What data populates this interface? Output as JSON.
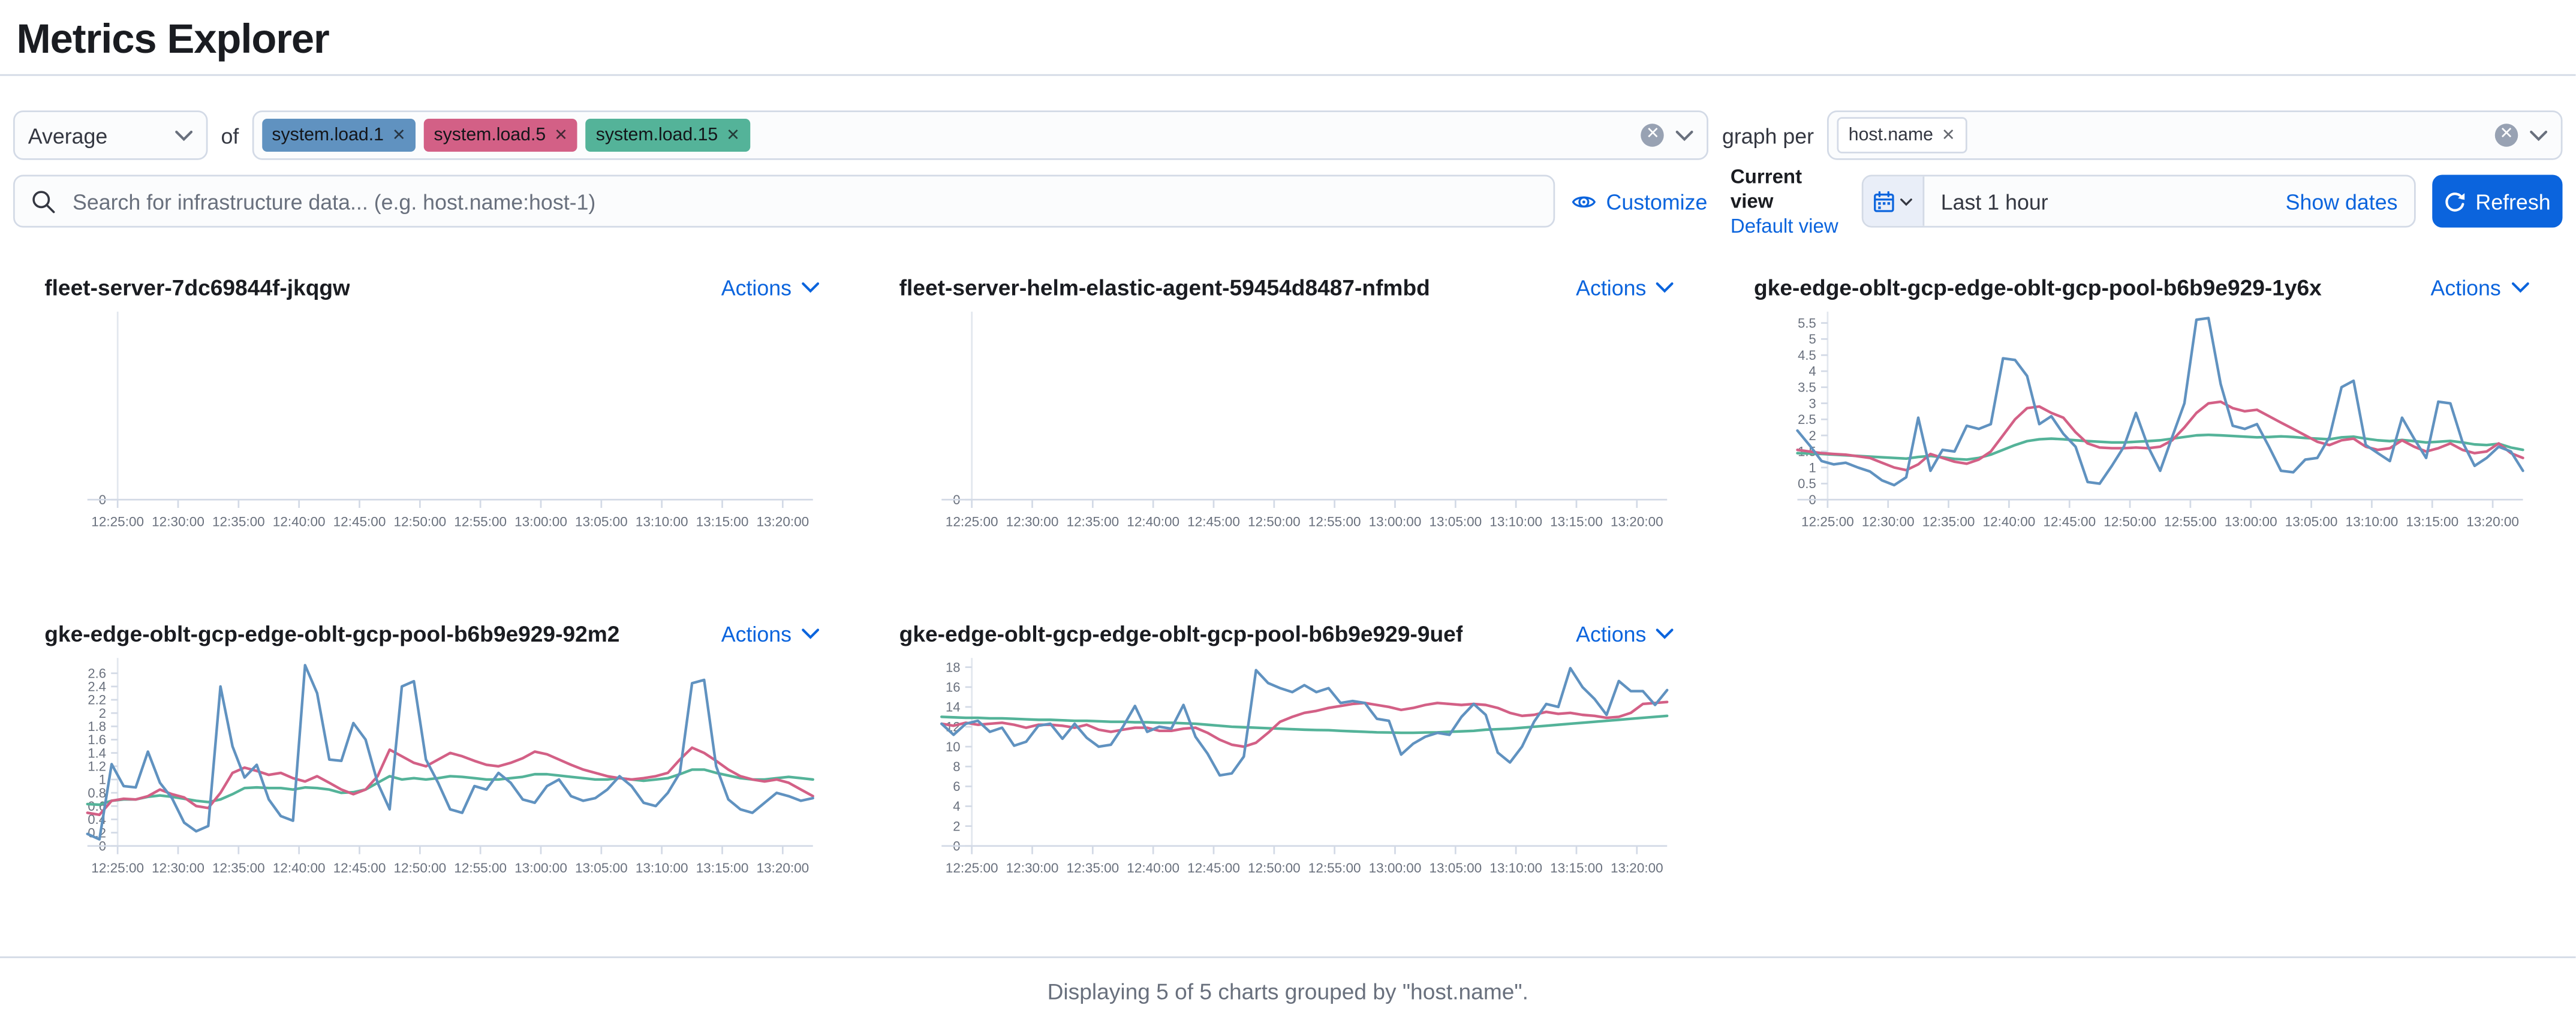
{
  "page": {
    "title": "Metrics Explorer"
  },
  "colors": {
    "accent": "#0b64dd",
    "series_blue": "#6092C0",
    "series_pink": "#D36086",
    "series_green": "#54B399",
    "axis_line": "#d3dae6",
    "tick_text": "#69707d"
  },
  "toolbar": {
    "aggregation_select": {
      "value": "Average"
    },
    "of_label": "of",
    "metric_badges": [
      {
        "label": "system.load.1",
        "color": "#6092C0"
      },
      {
        "label": "system.load.5",
        "color": "#D36086"
      },
      {
        "label": "system.load.15",
        "color": "#54B399"
      }
    ],
    "graph_per_label": "graph per",
    "group_by_badges": [
      {
        "label": "host.name"
      }
    ]
  },
  "search": {
    "placeholder": "Search for infrastructure data... (e.g. host.name:host-1)"
  },
  "view_controls": {
    "customize_label": "Customize",
    "current_view_label": "Current view",
    "default_view_label": "Default view"
  },
  "datepicker": {
    "range_label": "Last 1 hour",
    "show_dates_label": "Show dates",
    "refresh_label": "Refresh"
  },
  "chart_x_ticks": [
    "12:25:00",
    "12:30:00",
    "12:35:00",
    "12:40:00",
    "12:45:00",
    "12:50:00",
    "12:55:00",
    "13:00:00",
    "13:05:00",
    "13:10:00",
    "13:15:00",
    "13:20:00"
  ],
  "charts": [
    {
      "title": "fleet-server-7dc69844f-jkqgw",
      "actions_label": "Actions",
      "type": "line",
      "y_ticks": [
        0
      ],
      "y_max": 1,
      "series": []
    },
    {
      "title": "fleet-server-helm-elastic-agent-59454d8487-nfmbd",
      "actions_label": "Actions",
      "type": "line",
      "y_ticks": [
        0
      ],
      "y_max": 1,
      "series": []
    },
    {
      "title": "gke-edge-oblt-gcp-edge-oblt-gcp-pool-b6b9e929-1y6x",
      "actions_label": "Actions",
      "type": "line",
      "y_ticks": [
        5.5,
        5,
        4.5,
        4,
        3.5,
        3,
        2.5,
        2,
        1.5,
        1,
        0.5,
        0
      ],
      "y_max": 5.75,
      "series": [
        {
          "name": "system.load.15",
          "color": "#54B399",
          "values": [
            1.45,
            1.44,
            1.42,
            1.4,
            1.38,
            1.36,
            1.34,
            1.32,
            1.3,
            1.28,
            1.33,
            1.36,
            1.32,
            1.27,
            1.25,
            1.3,
            1.4,
            1.55,
            1.7,
            1.82,
            1.88,
            1.9,
            1.88,
            1.85,
            1.82,
            1.8,
            1.78,
            1.78,
            1.8,
            1.82,
            1.85,
            1.9,
            1.95,
            2.0,
            2.02,
            2.0,
            1.98,
            1.96,
            1.94,
            1.95,
            1.97,
            1.95,
            1.92,
            1.9,
            1.88,
            1.94,
            1.96,
            1.9,
            1.85,
            1.82,
            1.86,
            1.82,
            1.78,
            1.8,
            1.83,
            1.78,
            1.72,
            1.7,
            1.74,
            1.62,
            1.55
          ]
        },
        {
          "name": "system.load.5",
          "color": "#D36086",
          "values": [
            1.55,
            1.5,
            1.45,
            1.42,
            1.4,
            1.35,
            1.3,
            1.15,
            1.0,
            0.92,
            1.1,
            1.42,
            1.3,
            1.18,
            1.12,
            1.25,
            1.5,
            2.0,
            2.5,
            2.85,
            2.9,
            2.7,
            2.55,
            2.1,
            1.75,
            1.62,
            1.6,
            1.6,
            1.62,
            1.6,
            1.65,
            1.85,
            2.25,
            2.7,
            3.0,
            3.05,
            2.85,
            2.75,
            2.8,
            2.6,
            2.4,
            2.2,
            2.0,
            1.8,
            1.7,
            1.85,
            1.9,
            1.65,
            1.55,
            1.6,
            1.85,
            1.65,
            1.5,
            1.6,
            1.75,
            1.55,
            1.45,
            1.5,
            1.75,
            1.45,
            1.3
          ]
        },
        {
          "name": "system.load.1",
          "color": "#6092C0",
          "values": [
            2.15,
            1.7,
            1.2,
            1.1,
            1.15,
            1.0,
            0.88,
            0.6,
            0.45,
            0.7,
            2.55,
            0.9,
            1.55,
            1.5,
            2.3,
            2.2,
            2.35,
            4.4,
            4.35,
            3.85,
            2.35,
            2.6,
            2.05,
            1.65,
            0.55,
            0.5,
            1.05,
            1.65,
            2.7,
            1.65,
            0.9,
            1.95,
            3.0,
            5.6,
            5.65,
            3.6,
            2.3,
            2.2,
            2.35,
            1.65,
            0.9,
            0.85,
            1.25,
            1.3,
            1.95,
            3.5,
            3.7,
            1.7,
            1.45,
            1.2,
            2.55,
            1.9,
            1.3,
            3.05,
            3.0,
            1.8,
            1.05,
            1.3,
            1.65,
            1.5,
            0.9
          ]
        }
      ]
    },
    {
      "title": "gke-edge-oblt-gcp-edge-oblt-gcp-pool-b6b9e929-92m2",
      "actions_label": "Actions",
      "type": "line",
      "y_ticks": [
        2.6,
        2.4,
        2.2,
        2,
        1.8,
        1.6,
        1.4,
        1.2,
        1,
        0.8,
        0.6,
        0.4,
        0.2,
        0
      ],
      "y_max": 2.78,
      "series": [
        {
          "name": "system.load.15",
          "color": "#54B399",
          "values": [
            0.63,
            0.62,
            0.68,
            0.7,
            0.7,
            0.74,
            0.76,
            0.74,
            0.71,
            0.68,
            0.66,
            0.7,
            0.78,
            0.87,
            0.88,
            0.87,
            0.87,
            0.85,
            0.88,
            0.87,
            0.85,
            0.8,
            0.81,
            0.85,
            0.95,
            1.05,
            1.0,
            1.02,
            1.0,
            1.02,
            1.05,
            1.04,
            1.02,
            1.0,
            1.0,
            1.02,
            1.04,
            1.08,
            1.08,
            1.06,
            1.04,
            1.02,
            1.0,
            1.0,
            1.02,
            1.0,
            0.98,
            1.0,
            1.02,
            1.08,
            1.15,
            1.15,
            1.1,
            1.06,
            1.02,
            1.0,
            1.0,
            1.02,
            1.04,
            1.02,
            1.0
          ]
        },
        {
          "name": "system.load.5",
          "color": "#D36086",
          "values": [
            0.5,
            0.47,
            0.68,
            0.71,
            0.7,
            0.75,
            0.85,
            0.78,
            0.73,
            0.6,
            0.57,
            0.8,
            1.1,
            1.18,
            1.13,
            1.07,
            1.1,
            1.02,
            0.97,
            1.05,
            0.95,
            0.85,
            0.78,
            0.85,
            1.05,
            1.45,
            1.35,
            1.25,
            1.2,
            1.3,
            1.4,
            1.35,
            1.28,
            1.22,
            1.2,
            1.25,
            1.32,
            1.42,
            1.38,
            1.3,
            1.22,
            1.15,
            1.1,
            1.05,
            1.02,
            1.0,
            1.02,
            1.05,
            1.1,
            1.3,
            1.48,
            1.4,
            1.28,
            1.15,
            1.05,
            1.0,
            0.97,
            1.0,
            0.95,
            0.85,
            0.75
          ]
        },
        {
          "name": "system.load.1",
          "color": "#6092C0",
          "values": [
            0.18,
            0.1,
            1.23,
            0.9,
            0.88,
            1.42,
            0.95,
            0.72,
            0.35,
            0.22,
            0.3,
            2.4,
            1.5,
            1.03,
            1.22,
            0.7,
            0.45,
            0.38,
            2.72,
            2.3,
            1.3,
            1.28,
            1.85,
            1.6,
            0.95,
            0.55,
            2.4,
            2.48,
            1.3,
            0.95,
            0.55,
            0.5,
            0.9,
            0.85,
            1.1,
            0.95,
            0.7,
            0.65,
            0.9,
            1.0,
            0.75,
            0.68,
            0.72,
            0.85,
            1.05,
            0.9,
            0.65,
            0.6,
            0.8,
            1.1,
            2.45,
            2.5,
            1.2,
            0.7,
            0.55,
            0.5,
            0.65,
            0.8,
            0.75,
            0.68,
            0.72
          ]
        }
      ]
    },
    {
      "title": "gke-edge-oblt-gcp-edge-oblt-gcp-pool-b6b9e929-9uef",
      "actions_label": "Actions",
      "type": "line",
      "y_ticks": [
        18,
        16,
        14,
        12,
        10,
        8,
        6,
        4,
        2,
        0
      ],
      "y_max": 18.6,
      "series": [
        {
          "name": "system.load.15",
          "color": "#54B399",
          "values": [
            13.0,
            12.95,
            12.9,
            12.9,
            12.85,
            12.85,
            12.8,
            12.75,
            12.7,
            12.7,
            12.65,
            12.6,
            12.6,
            12.55,
            12.5,
            12.5,
            12.45,
            12.45,
            12.4,
            12.4,
            12.35,
            12.3,
            12.2,
            12.1,
            12.0,
            11.95,
            11.9,
            11.85,
            11.8,
            11.75,
            11.7,
            11.68,
            11.65,
            11.6,
            11.55,
            11.5,
            11.45,
            11.42,
            11.4,
            11.4,
            11.42,
            11.45,
            11.5,
            11.55,
            11.6,
            11.7,
            11.75,
            11.8,
            11.9,
            12.0,
            12.1,
            12.2,
            12.3,
            12.4,
            12.5,
            12.6,
            12.7,
            12.8,
            12.9,
            13.0,
            13.1
          ]
        },
        {
          "name": "system.load.5",
          "color": "#D36086",
          "values": [
            12.3,
            12.1,
            12.4,
            12.2,
            12.3,
            12.4,
            12.2,
            11.9,
            12.2,
            12.2,
            12.1,
            11.9,
            12.2,
            11.7,
            11.5,
            11.7,
            11.9,
            11.9,
            11.6,
            11.6,
            11.8,
            11.9,
            11.4,
            10.7,
            10.2,
            10.0,
            10.4,
            11.4,
            12.5,
            13.0,
            13.4,
            13.6,
            13.9,
            14.1,
            14.3,
            14.4,
            14.2,
            14.0,
            13.7,
            13.9,
            14.2,
            14.4,
            14.3,
            14.2,
            14.3,
            14.2,
            13.9,
            13.4,
            13.1,
            13.2,
            13.5,
            13.3,
            13.4,
            13.2,
            13.1,
            12.9,
            13.0,
            13.4,
            14.3,
            14.4,
            14.5
          ]
        },
        {
          "name": "system.load.1",
          "color": "#6092C0",
          "values": [
            12.3,
            11.2,
            12.3,
            12.6,
            11.5,
            11.9,
            10.1,
            10.5,
            12.1,
            12.3,
            10.8,
            12.3,
            10.9,
            10.0,
            10.2,
            12.0,
            14.1,
            11.5,
            12.0,
            11.8,
            14.2,
            11.0,
            9.3,
            7.1,
            7.3,
            9.0,
            17.7,
            16.4,
            15.9,
            15.5,
            16.2,
            15.5,
            15.9,
            14.4,
            14.6,
            14.4,
            12.8,
            12.6,
            9.2,
            10.3,
            11.0,
            11.4,
            11.2,
            13.0,
            14.3,
            13.2,
            9.4,
            8.4,
            10.0,
            12.5,
            14.3,
            14.0,
            17.9,
            16.0,
            14.8,
            13.2,
            16.6,
            15.6,
            15.6,
            14.2,
            15.7
          ]
        }
      ]
    }
  ],
  "footer": {
    "summary": "Displaying 5 of 5 charts grouped by \"host.name\"."
  }
}
